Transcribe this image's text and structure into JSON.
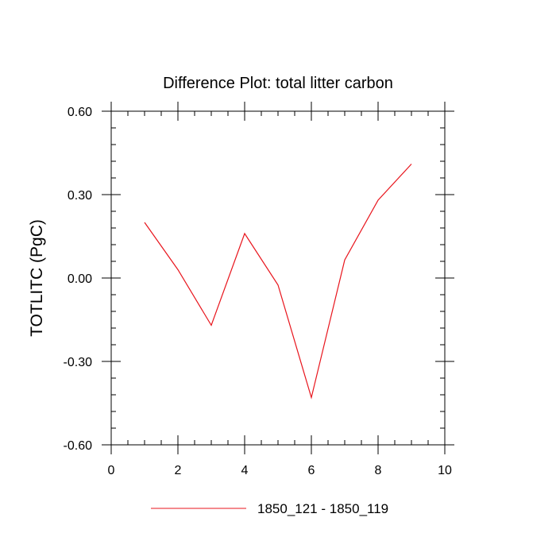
{
  "chart_data": {
    "type": "line",
    "title": "Difference Plot: total litter carbon",
    "xlabel": "",
    "ylabel": "TOTLITC  (PgC)",
    "xlim": [
      0,
      10
    ],
    "ylim": [
      -0.6,
      0.6
    ],
    "x_ticks": [
      0,
      2,
      4,
      6,
      8,
      10
    ],
    "x_tick_labels": [
      "0",
      "2",
      "4",
      "6",
      "8",
      "10"
    ],
    "y_ticks": [
      -0.6,
      -0.3,
      0.0,
      0.3,
      0.6
    ],
    "y_tick_labels": [
      "-0.60",
      "-0.30",
      "0.00",
      "0.30",
      "0.60"
    ],
    "grid": false,
    "legend_position": "bottom",
    "series": [
      {
        "name": "1850_121 - 1850_119",
        "color": "#e8141c",
        "x": [
          1,
          2,
          3,
          4,
          5,
          6,
          7,
          8,
          9
        ],
        "y": [
          0.2,
          0.03,
          -0.17,
          0.16,
          -0.025,
          -0.43,
          0.065,
          0.28,
          0.41
        ]
      }
    ]
  }
}
